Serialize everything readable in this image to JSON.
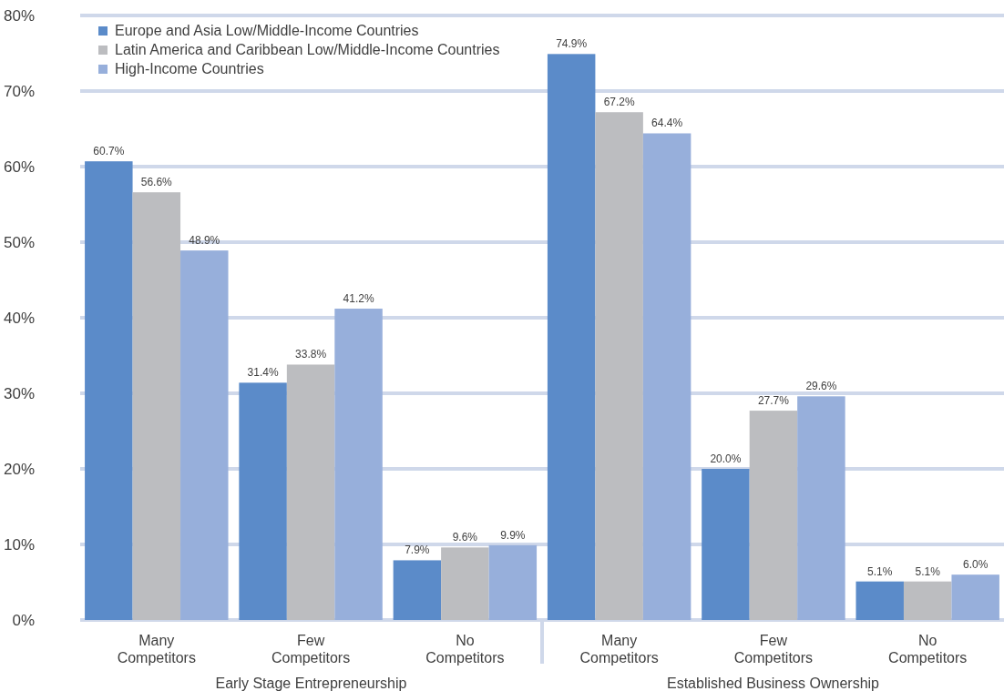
{
  "chart_data": {
    "type": "bar",
    "categories": [
      "Many Competitors",
      "Few Competitors",
      "No Competitors",
      "Many Competitors",
      "Few Competitors",
      "No Competitors"
    ],
    "series": [
      {
        "name": "Europe and Asia Low/Middle-Income Countries",
        "color": "#5b8bc9",
        "values": [
          60.7,
          31.4,
          7.9,
          74.9,
          20.0,
          5.1
        ],
        "value_labels": [
          "60.7%",
          "31.4%",
          "7.9%",
          "74.9%",
          "20.0%",
          "5.1%"
        ]
      },
      {
        "name": "Latin America and Caribbean Low/Middle-Income Countries",
        "color": "#bcbdc0",
        "values": [
          56.6,
          33.8,
          9.6,
          67.2,
          27.7,
          5.1
        ],
        "value_labels": [
          "56.6%",
          "33.8%",
          "9.6%",
          "67.2%",
          "27.7%",
          "5.1%"
        ]
      },
      {
        "name": "High-Income Countries",
        "color": "#97afdb",
        "values": [
          48.9,
          41.2,
          9.9,
          64.4,
          29.6,
          6.0
        ],
        "value_labels": [
          "48.9%",
          "41.2%",
          "9.9%",
          "64.4%",
          "29.6%",
          "6.0%"
        ]
      }
    ],
    "ylim": [
      0,
      80
    ],
    "yticks": [
      {
        "value": 0,
        "label": "0%"
      },
      {
        "value": 10,
        "label": "10%"
      },
      {
        "value": 20,
        "label": "20%"
      },
      {
        "value": 30,
        "label": "30%"
      },
      {
        "value": 40,
        "label": "40%"
      },
      {
        "value": 50,
        "label": "50%"
      },
      {
        "value": 60,
        "label": "60%"
      },
      {
        "value": 70,
        "label": "70%"
      },
      {
        "value": 80,
        "label": "80%"
      }
    ],
    "grid": "y",
    "legend": "top left",
    "annotations": [
      "Early Stage Entrepreneurship",
      "Established Business Ownership"
    ]
  }
}
